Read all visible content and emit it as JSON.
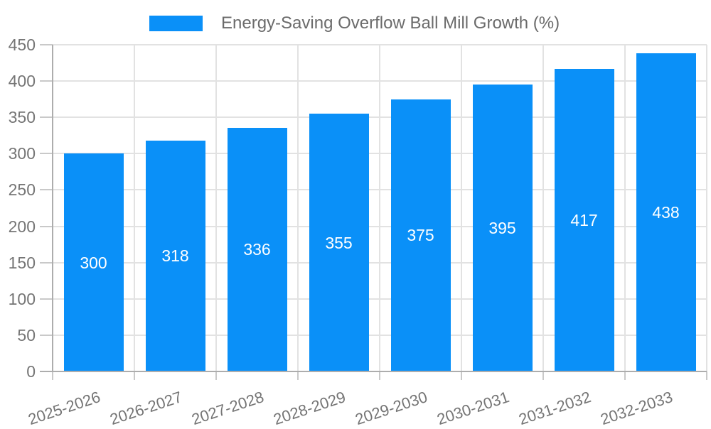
{
  "chart_data": {
    "type": "bar",
    "title": "Energy-Saving Overflow Ball Mill Growth (%)",
    "legend_position": "top-center",
    "categories": [
      "2025-2026",
      "2026-2027",
      "2027-2028",
      "2028-2029",
      "2029-2030",
      "2030-2031",
      "2031-2032",
      "2032-2033"
    ],
    "series": [
      {
        "name": "Energy-Saving Overflow Ball Mill Growth (%)",
        "values": [
          300,
          318,
          336,
          355,
          375,
          395,
          417,
          438
        ]
      }
    ],
    "bar_labels": [
      "300",
      "318",
      "336",
      "355",
      "375",
      "395",
      "417",
      "438"
    ],
    "xlabel": "",
    "ylabel": "",
    "ylim": [
      0,
      450
    ],
    "ytick_step": 50,
    "ytick_labels": [
      "0",
      "50",
      "100",
      "150",
      "200",
      "250",
      "300",
      "350",
      "400",
      "450"
    ],
    "grid": true,
    "x_label_rotation_deg": -18.5,
    "colors": {
      "bar": "#0a90f8",
      "bar_value_label": "#ffffff",
      "grid_line": "#e2e2e2",
      "axis_line": "#adadad",
      "tick_mark": "#c9c9c9",
      "tick_label": "#757575",
      "title_text": "#6b6b6b",
      "background": "#ffffff"
    }
  }
}
